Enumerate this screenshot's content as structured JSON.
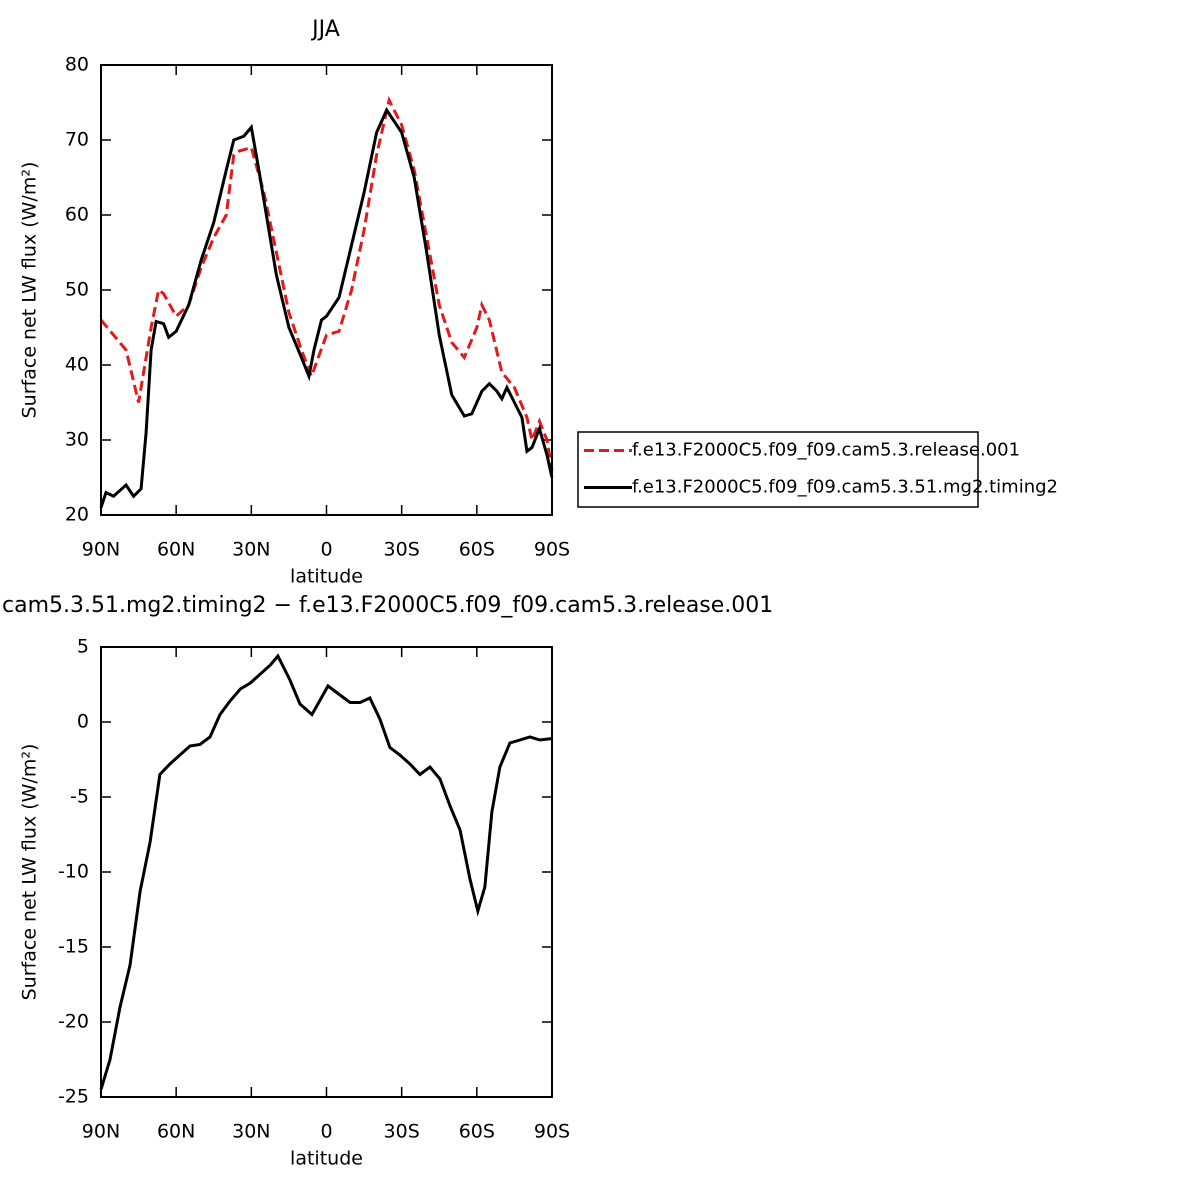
{
  "chart_data": [
    {
      "type": "line",
      "title": "JJA",
      "xlabel": "latitude",
      "ylabel": "Surface net LW flux (W/m²)",
      "xlim": [
        90,
        -90
      ],
      "xticks": [
        {
          "value": 90,
          "label": "90N"
        },
        {
          "value": 60,
          "label": "60N"
        },
        {
          "value": 30,
          "label": "30N"
        },
        0,
        {
          "value": -30,
          "label": "30S"
        },
        {
          "value": -60,
          "label": "60S"
        },
        {
          "value": -90,
          "label": "90S"
        }
      ],
      "ylim": [
        20,
        80
      ],
      "yticks": [
        20,
        30,
        40,
        50,
        60,
        70,
        80
      ],
      "legend": "right",
      "series": [
        {
          "name": "f.e13.F2000C5.f09_f09.cam5.3.release.001",
          "color": "#e31a1c",
          "dashed": true,
          "x": [
            90,
            85,
            80,
            75,
            70,
            67,
            65,
            60,
            55,
            50,
            45,
            40,
            37,
            35,
            30,
            25,
            20,
            15,
            10,
            6,
            0,
            -5,
            -10,
            -15,
            -20,
            -25,
            -30,
            -35,
            -40,
            -45,
            -50,
            -55,
            -60,
            -62,
            -65,
            -70,
            -75,
            -80,
            -82,
            -85,
            -88,
            -90
          ],
          "values": [
            46,
            44,
            42,
            35,
            45,
            50,
            49.5,
            46.5,
            48,
            53,
            57,
            60,
            68,
            68.5,
            69,
            63,
            55,
            47,
            42,
            38.5,
            44,
            44.5,
            50,
            58,
            68,
            75.3,
            72,
            66,
            57,
            48,
            43,
            41,
            45,
            48,
            46,
            39,
            37,
            33,
            30,
            32.5,
            30,
            26
          ]
        },
        {
          "name": "f.e13.F2000C5.f09_f09.cam5.3.51.mg2.timing2",
          "color": "#000000",
          "dashed": false,
          "x": [
            90,
            88,
            85,
            80,
            77,
            74,
            72,
            70,
            68,
            65,
            63,
            60,
            55,
            50,
            45,
            40,
            37,
            33,
            30,
            27,
            25,
            20,
            15,
            10,
            7,
            5,
            2,
            0,
            -5,
            -10,
            -15,
            -20,
            -24,
            -30,
            -35,
            -40,
            -45,
            -50,
            -55,
            -58,
            -62,
            -65,
            -68,
            -70,
            -72,
            -75,
            -78,
            -80,
            -82,
            -85,
            -88,
            -90
          ],
          "values": [
            21,
            23,
            22.5,
            24,
            22.5,
            23.5,
            31,
            42,
            45.8,
            45.5,
            43.7,
            44.5,
            48,
            54,
            59,
            66,
            70,
            70.5,
            71.7,
            66,
            62,
            52,
            45,
            41,
            38.5,
            42,
            46,
            46.5,
            49,
            56,
            63,
            71,
            74,
            71,
            65,
            55,
            44,
            36,
            33.2,
            33.5,
            36.5,
            37.5,
            36.5,
            35.5,
            37,
            35,
            33,
            28.5,
            29,
            31.5,
            28,
            25
          ]
        }
      ]
    },
    {
      "type": "line",
      "title": "cam5.3.51.mg2.timing2 − f.e13.F2000C5.f09_f09.cam5.3.release.001",
      "xlabel": "latitude",
      "ylabel": "Surface net LW flux (W/m²)",
      "xlim": [
        90,
        -90
      ],
      "xticks": [
        {
          "value": 90,
          "label": "90N"
        },
        {
          "value": 60,
          "label": "60N"
        },
        {
          "value": 30,
          "label": "30N"
        },
        0,
        {
          "value": -30,
          "label": "30S"
        },
        {
          "value": -60,
          "label": "60S"
        },
        {
          "value": -90,
          "label": "90S"
        }
      ],
      "ylim": [
        -25,
        5
      ],
      "yticks": [
        -25,
        -20,
        -15,
        -10,
        -5,
        0,
        5
      ],
      "series": [
        {
          "color": "#000000",
          "dashed": false,
          "x": [
            90,
            86.4,
            82.4,
            78.4,
            74.4,
            70.4,
            66.5,
            62.5,
            58.5,
            54.5,
            50.5,
            46.5,
            42.5,
            38.5,
            34.4,
            30.4,
            26.4,
            22.4,
            19.4,
            14.6,
            10.6,
            5.8,
            -0.6,
            -5.4,
            -9.4,
            -13.4,
            -17.3,
            -21.3,
            -25.3,
            -29.3,
            -33.3,
            -37.3,
            -41.3,
            -45.3,
            -49.3,
            -53.3,
            -57.3,
            -60.4,
            -63.2,
            -66,
            -69.2,
            -73.2,
            -77.2,
            -81.2,
            -85.2,
            -90
          ],
          "values": [
            -24.5,
            -22.5,
            -19,
            -16.2,
            -11.3,
            -8,
            -3.5,
            -2.8,
            -2.2,
            -1.6,
            -1.5,
            -1,
            0.5,
            1.4,
            2.2,
            2.6,
            3.2,
            3.8,
            4.4,
            2.8,
            1.2,
            0.5,
            2.4,
            1.8,
            1.3,
            1.3,
            1.6,
            0.2,
            -1.7,
            -2.2,
            -2.8,
            -3.5,
            -3,
            -3.8,
            -5.6,
            -7.2,
            -10.5,
            -12.6,
            -11,
            -6,
            -3,
            -1.4,
            -1.2,
            -1,
            -1.2,
            -1.1
          ]
        }
      ]
    }
  ]
}
